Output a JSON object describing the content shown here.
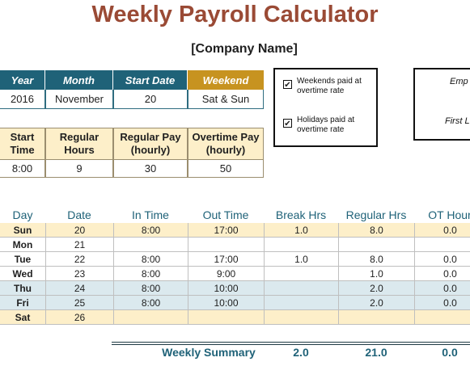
{
  "title": "Weekly Payroll Calculator",
  "company": "[Company Name]",
  "period": {
    "headers": [
      "Year",
      "Month",
      "Start Date"
    ],
    "weekend_header": "Weekend",
    "values": [
      "2016",
      "November",
      "20",
      "Sat & Sun"
    ]
  },
  "rates": {
    "headers": [
      "Start\nTime",
      "Regular\nHours",
      "Regular Pay\n(hourly)",
      "Overtime Pay\n(hourly)"
    ],
    "values": [
      "8:00",
      "9",
      "30",
      "50"
    ]
  },
  "options": {
    "weekends_label": "Weekends paid at overtime rate",
    "weekends_checked": true,
    "holidays_label": "Holidays paid at overtime rate",
    "holidays_checked": true
  },
  "employee": {
    "label1": "Emp",
    "label2": "First L"
  },
  "table": {
    "columns": [
      "Day",
      "Date",
      "In Time",
      "Out Time",
      "Break Hrs",
      "Regular Hrs",
      "OT Hour"
    ],
    "rows": [
      {
        "day": "Sun",
        "date": "20",
        "in": "8:00",
        "out": "17:00",
        "brk": "1.0",
        "reg": "8.0",
        "ot": "0.0",
        "style": "weekend"
      },
      {
        "day": "Mon",
        "date": "21",
        "in": "",
        "out": "",
        "brk": "",
        "reg": "",
        "ot": "",
        "style": ""
      },
      {
        "day": "Tue",
        "date": "22",
        "in": "8:00",
        "out": "17:00",
        "brk": "1.0",
        "reg": "8.0",
        "ot": "0.0",
        "style": ""
      },
      {
        "day": "Wed",
        "date": "23",
        "in": "8:00",
        "out": "9:00",
        "brk": "",
        "reg": "1.0",
        "ot": "0.0",
        "style": ""
      },
      {
        "day": "Thu",
        "date": "24",
        "in": "8:00",
        "out": "10:00",
        "brk": "",
        "reg": "2.0",
        "ot": "0.0",
        "style": "blue"
      },
      {
        "day": "Fri",
        "date": "25",
        "in": "8:00",
        "out": "10:00",
        "brk": "",
        "reg": "2.0",
        "ot": "0.0",
        "style": "blue"
      },
      {
        "day": "Sat",
        "date": "26",
        "in": "",
        "out": "",
        "brk": "",
        "reg": "",
        "ot": "",
        "style": "weekend"
      }
    ]
  },
  "summary": {
    "label": "Weekly Summary",
    "break": "2.0",
    "regular": "21.0",
    "ot": "0.0"
  }
}
